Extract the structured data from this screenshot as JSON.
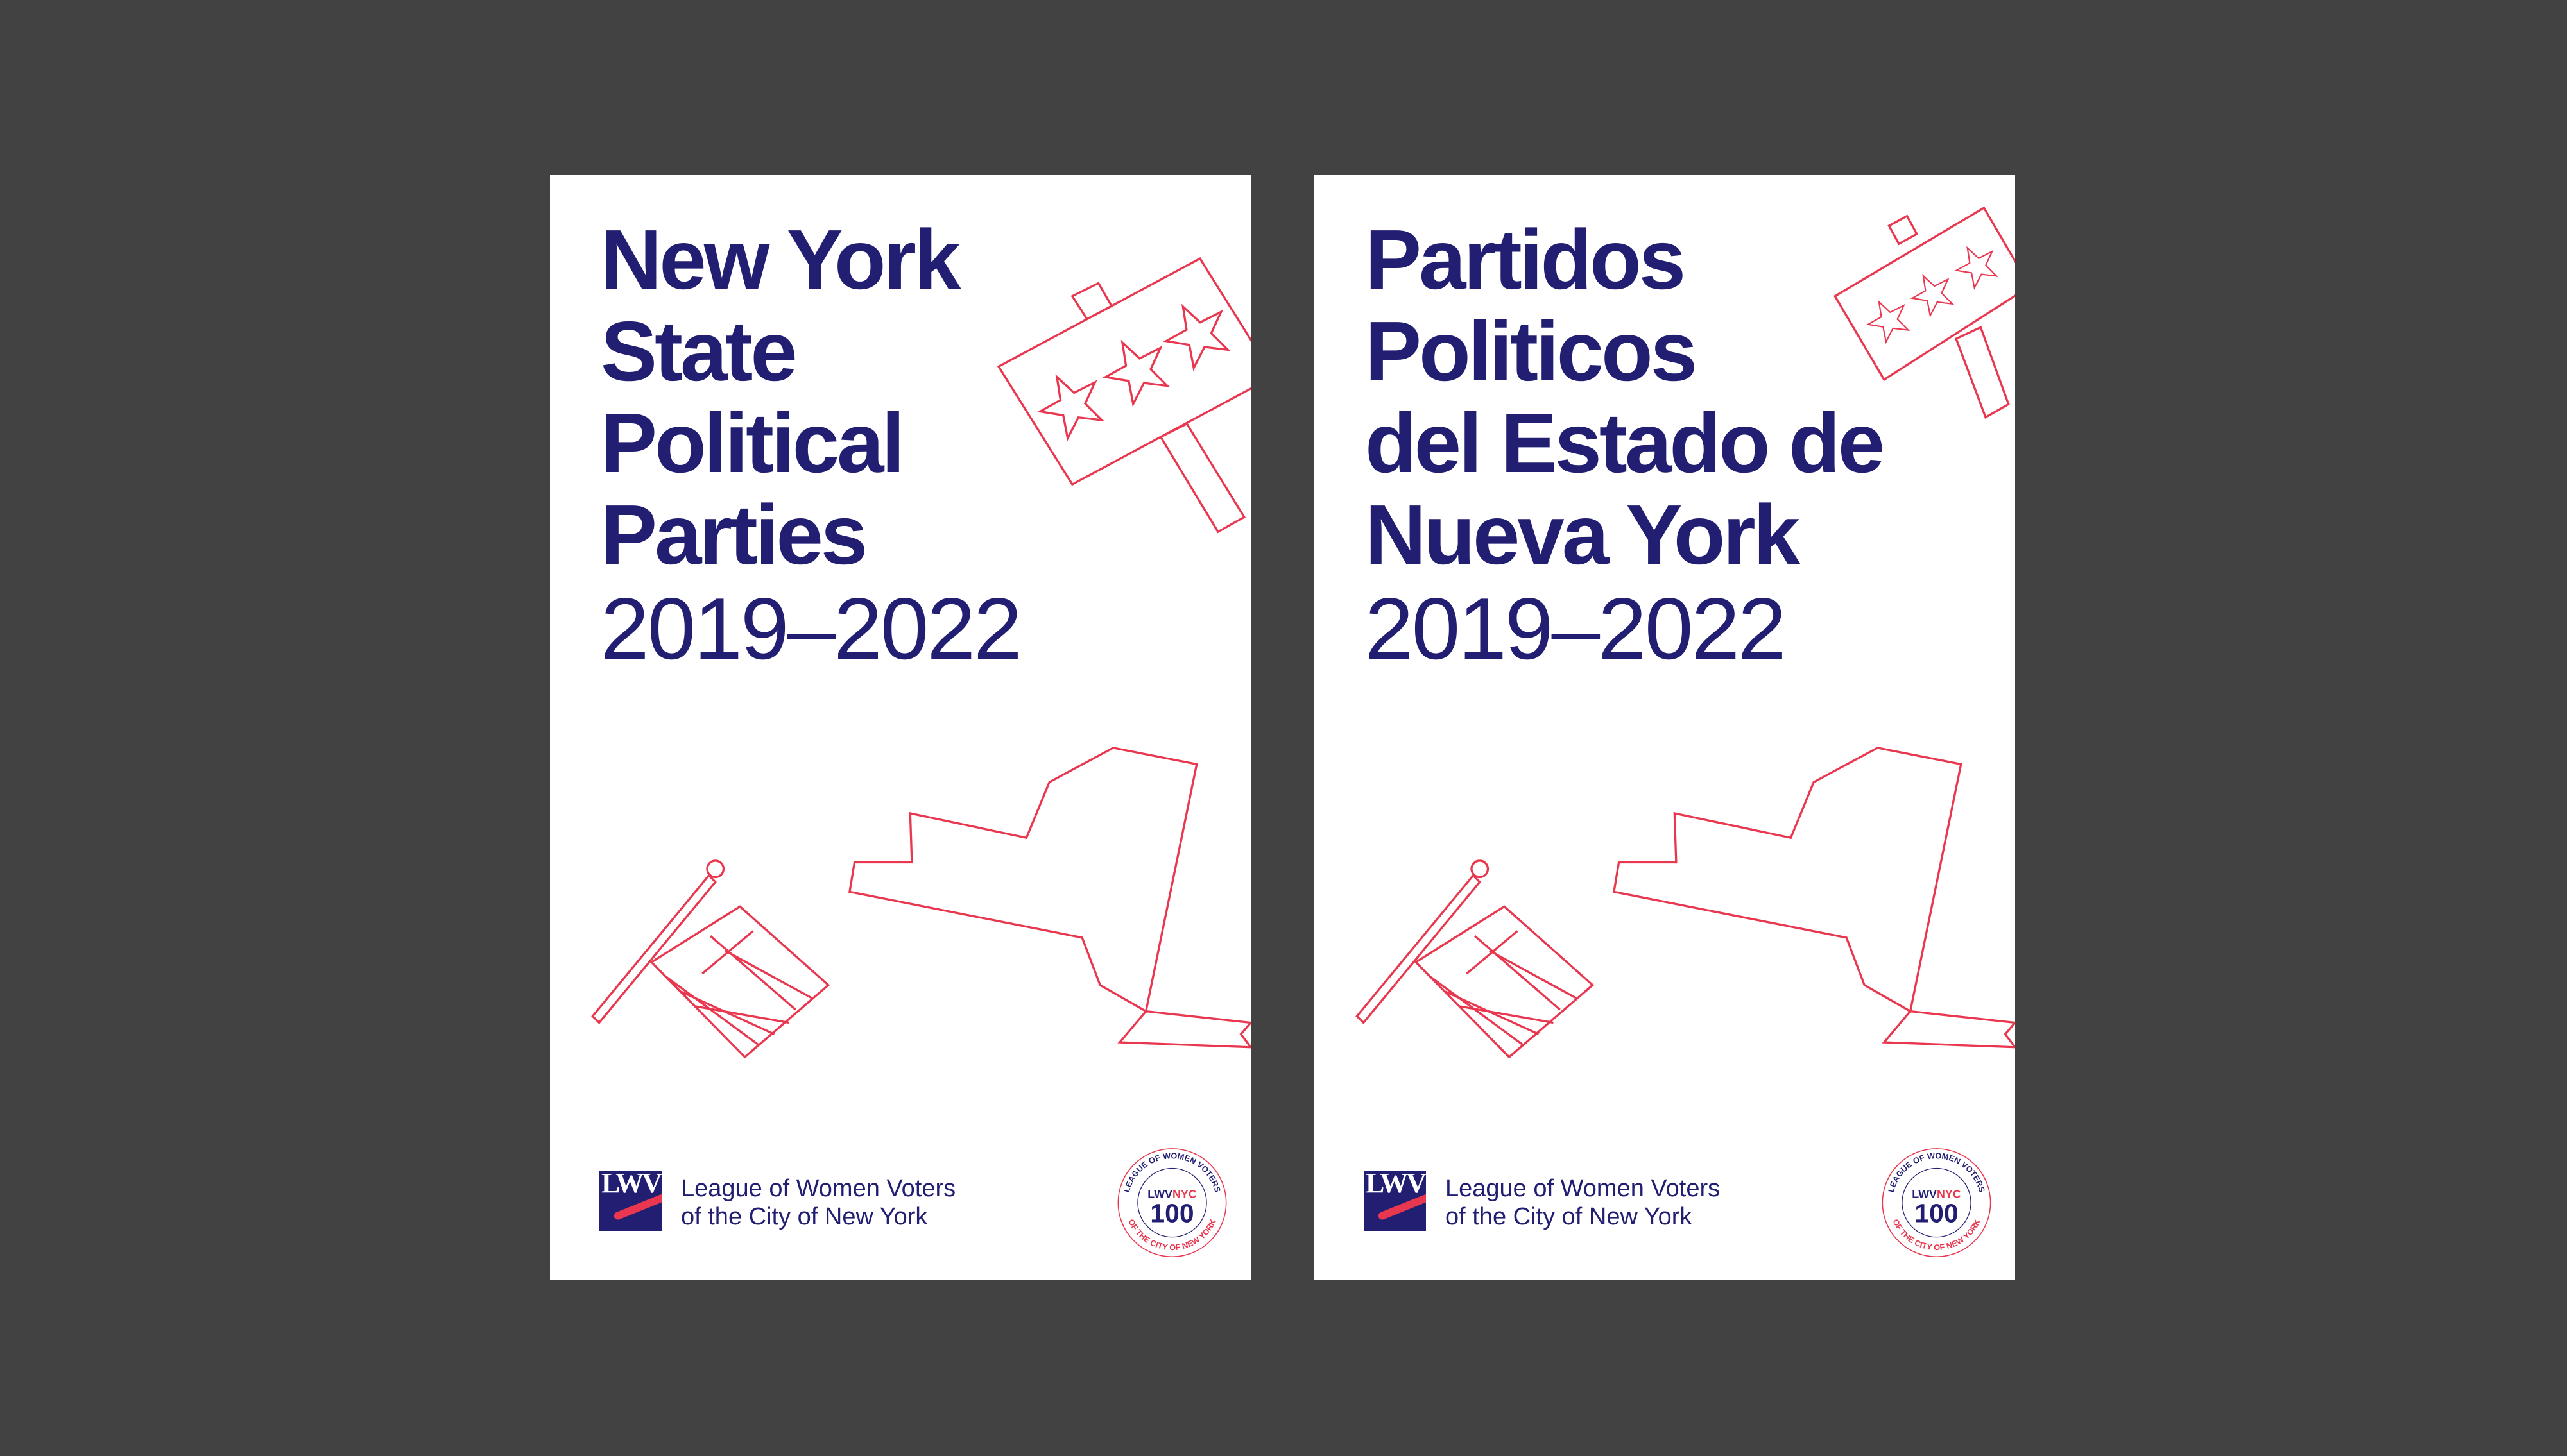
{
  "colors": {
    "background": "#424242",
    "navy": "#221f73",
    "red": "#e8374f",
    "paper": "#ffffff"
  },
  "covers": [
    {
      "language": "en",
      "title_lines": [
        "New York",
        "State",
        "Political",
        "Parties"
      ],
      "years": "2019–2022"
    },
    {
      "language": "es",
      "title_lines": [
        "Partidos",
        "Politicos",
        "del Estado de",
        "Nueva York"
      ],
      "years": "2019–2022"
    }
  ],
  "footer": {
    "logo_text": "LWV",
    "org_line1": "League of Women Voters",
    "org_line2": "of the City of New York",
    "seal": {
      "top_arc": "LEAGUE OF WOMEN VOTERS",
      "bottom_arc": "OF THE CITY OF NEW YORK",
      "center_1a": "LWV",
      "center_1b": "NYC",
      "center_2": "100"
    }
  }
}
